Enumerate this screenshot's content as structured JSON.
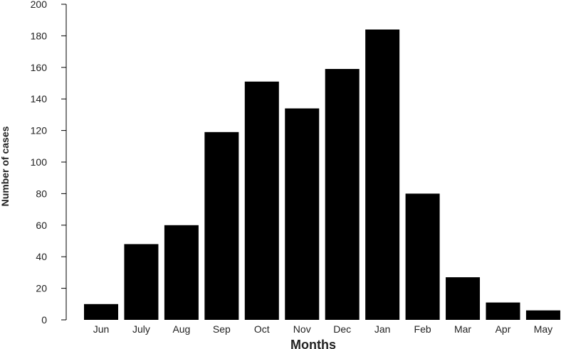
{
  "chart_data": {
    "type": "bar",
    "xlabel": "Months",
    "ylabel": "Number of cases",
    "ylim": [
      0,
      200
    ],
    "yticks": [
      0,
      20,
      40,
      60,
      80,
      100,
      120,
      140,
      160,
      180,
      200
    ],
    "categories": [
      "Jun",
      "July",
      "Aug",
      "Sep",
      "Oct",
      "Nov",
      "Dec",
      "Jan",
      "Feb",
      "Mar",
      "Apr",
      "May"
    ],
    "values": [
      10,
      48,
      60,
      119,
      151,
      134,
      159,
      184,
      80,
      27,
      11,
      6
    ],
    "bar_color": "#000000",
    "grid": false,
    "legend": "none"
  }
}
